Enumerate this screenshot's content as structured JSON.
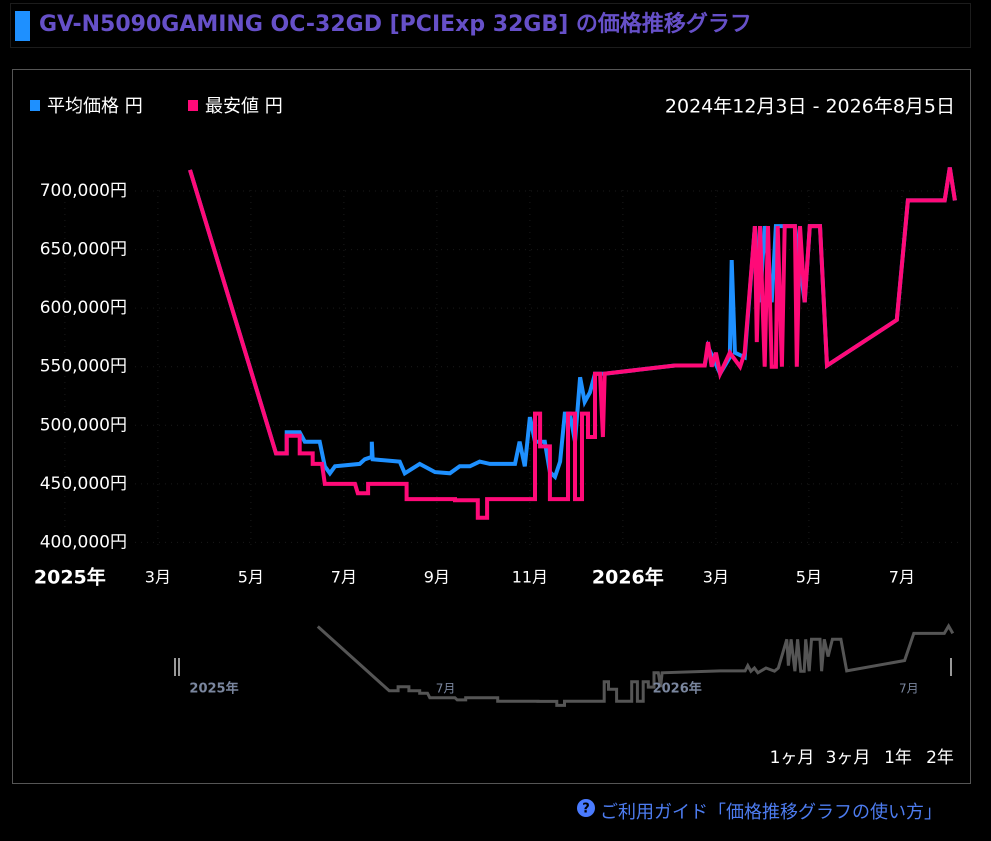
{
  "header": {
    "title": "GV-N5090GAMING OC-32GD [PCIExp 32GB] の価格推移グラフ"
  },
  "chart_data": {
    "type": "line",
    "subtitle": "2024年12月3日 - 2026年8月5日",
    "xlim": [
      -0.75,
      19.25
    ],
    "xticks": [
      {
        "value": 0,
        "label": "2025年"
      },
      {
        "value": 2,
        "label": "3月"
      },
      {
        "value": 4,
        "label": "5月"
      },
      {
        "value": 6,
        "label": "7月"
      },
      {
        "value": 8,
        "label": "9月"
      },
      {
        "value": 10,
        "label": "11月"
      },
      {
        "value": 12,
        "label": "2026年"
      },
      {
        "value": 14,
        "label": "3月"
      },
      {
        "value": 16,
        "label": "5月"
      },
      {
        "value": 18,
        "label": "7月"
      }
    ],
    "ylim": [
      385000,
      735000
    ],
    "yticks": [
      {
        "value": 400000,
        "label": "400,000円"
      },
      {
        "value": 450000,
        "label": "450,000円"
      },
      {
        "value": 500000,
        "label": "500,000円"
      },
      {
        "value": 550000,
        "label": "550,000円"
      },
      {
        "value": 600000,
        "label": "600,000円"
      },
      {
        "value": 650000,
        "label": "650,000円"
      },
      {
        "value": 700000,
        "label": "700,000円"
      }
    ],
    "grid": true,
    "series": [
      {
        "name": "平均価格 円",
        "color": "#1e90ff",
        "x": [
          2.69,
          4.54,
          4.77,
          4.77,
          5.05,
          5.16,
          5.48,
          5.59,
          5.7,
          5.81,
          6.34,
          6.45,
          6.6,
          6.6,
          6.62,
          7.2,
          7.31,
          7.63,
          7.96,
          8.28,
          8.49,
          8.71,
          8.92,
          9.14,
          9.35,
          9.68,
          9.78,
          9.89,
          10.0,
          10.11,
          10.32,
          10.43,
          10.54,
          10.65,
          10.75,
          10.86,
          10.97,
          11.08,
          11.18,
          11.29,
          11.4,
          11.61,
          13.12,
          13.76,
          13.83,
          14.09,
          14.3,
          14.34,
          14.41,
          14.62,
          14.84,
          14.95,
          15.05,
          15.2,
          15.29,
          15.7,
          15.91,
          16.02,
          16.24,
          16.39,
          17.89,
          18.13,
          18.92,
          19.03,
          19.14
        ],
        "values": [
          718000,
          476000,
          476000,
          494000,
          494000,
          486000,
          486000,
          465000,
          459000,
          465000,
          467000,
          471000,
          473000,
          486000,
          471000,
          469000,
          459000,
          467000,
          460000,
          459000,
          465000,
          465000,
          469000,
          467000,
          467000,
          467000,
          486000,
          465000,
          507000,
          486000,
          486000,
          460000,
          456000,
          469000,
          510000,
          510000,
          486000,
          541000,
          520000,
          528000,
          544000,
          544000,
          551000,
          551000,
          567000,
          544000,
          558000,
          641000,
          562000,
          558000,
          670000,
          605000,
          670000,
          605000,
          670000,
          670000,
          605000,
          670000,
          670000,
          551000,
          590000,
          692000,
          692000,
          720000,
          692000
        ]
      },
      {
        "name": "最安値 円",
        "color": "#ff0a78",
        "x": [
          2.69,
          4.54,
          4.77,
          4.77,
          5.05,
          5.05,
          5.33,
          5.33,
          5.53,
          5.59,
          6.24,
          6.3,
          6.52,
          6.52,
          7.35,
          7.35,
          8.39,
          8.39,
          8.88,
          8.88,
          9.08,
          9.08,
          10.11,
          10.11,
          10.22,
          10.22,
          10.43,
          10.43,
          10.82,
          10.82,
          10.97,
          10.97,
          11.12,
          11.12,
          11.25,
          11.25,
          11.4,
          11.4,
          11.51,
          11.57,
          11.61,
          13.12,
          13.76,
          13.83,
          13.91,
          14.0,
          14.09,
          14.3,
          14.52,
          14.62,
          14.84,
          14.88,
          14.95,
          15.05,
          15.12,
          15.2,
          15.29,
          15.33,
          15.42,
          15.48,
          15.7,
          15.74,
          15.81,
          15.91,
          16.02,
          16.24,
          16.39,
          17.89,
          18.13,
          18.92,
          19.03,
          19.14
        ],
        "values": [
          718000,
          476000,
          476000,
          491000,
          491000,
          476000,
          476000,
          467000,
          467000,
          450000,
          450000,
          442000,
          442000,
          450000,
          450000,
          437000,
          437000,
          436000,
          436000,
          421000,
          421000,
          437000,
          437000,
          510000,
          510000,
          482000,
          482000,
          437000,
          437000,
          510000,
          510000,
          437000,
          437000,
          510000,
          510000,
          490000,
          490000,
          544000,
          544000,
          490000,
          544000,
          551000,
          551000,
          571000,
          550000,
          562000,
          544000,
          562000,
          550000,
          562000,
          670000,
          571000,
          670000,
          550000,
          670000,
          550000,
          550000,
          670000,
          550000,
          670000,
          670000,
          550000,
          670000,
          605000,
          670000,
          670000,
          551000,
          590000,
          692000,
          692000,
          720000,
          692000
        ]
      }
    ],
    "navigator": {
      "xticks": [
        {
          "value": 0,
          "label": "2025年"
        },
        {
          "value": 6,
          "label": "7月"
        },
        {
          "value": 12,
          "label": "2026年"
        },
        {
          "value": 18,
          "label": "7月"
        }
      ]
    }
  },
  "range_buttons": [
    "1ヶ月",
    "3ヶ月",
    "1年",
    "2年"
  ],
  "guide_link": "ご利用ガイド「価格推移グラフの使い方」"
}
